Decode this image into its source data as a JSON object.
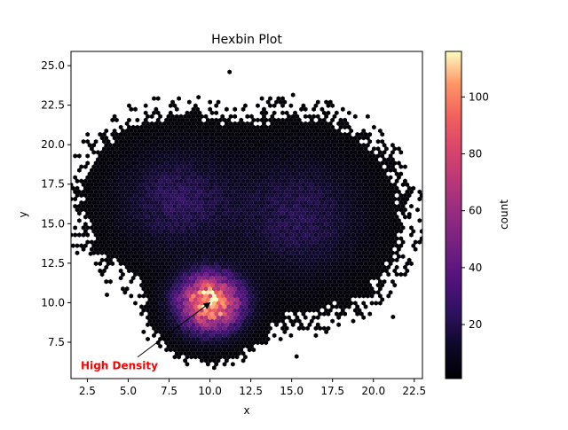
{
  "chart_data": {
    "type": "heatmap",
    "subtype": "hexbin",
    "title": "Hexbin Plot",
    "xlabel": "x",
    "ylabel": "y",
    "xlim": [
      1.5,
      23.0
    ],
    "ylim": [
      5.2,
      25.9
    ],
    "xticks": [
      2.5,
      5.0,
      7.5,
      10.0,
      12.5,
      15.0,
      17.5,
      20.0,
      22.5
    ],
    "xtick_labels": [
      "2.5",
      "5.0",
      "7.5",
      "10.0",
      "12.5",
      "15.0",
      "17.5",
      "20.0",
      "22.5"
    ],
    "yticks": [
      7.5,
      10.0,
      12.5,
      15.0,
      17.5,
      20.0,
      22.5,
      25.0
    ],
    "ytick_labels": [
      "7.5",
      "10.0",
      "12.5",
      "15.0",
      "17.5",
      "20.0",
      "22.5",
      "25.0"
    ],
    "colormap": "magma",
    "grid": false,
    "colorbar": {
      "label": "count",
      "range": [
        1,
        116
      ],
      "ticks": [
        20,
        40,
        60,
        80,
        100
      ],
      "tick_labels": [
        "20",
        "40",
        "60",
        "80",
        "100"
      ]
    },
    "density_clusters": [
      {
        "center": [
          10.0,
          10.0
        ],
        "spread": [
          1.3,
          1.2
        ],
        "peak_count": 116
      },
      {
        "center": [
          8.0,
          16.5
        ],
        "spread": [
          2.4,
          2.2
        ],
        "peak_count": 22
      },
      {
        "center": [
          15.5,
          15.5
        ],
        "spread": [
          2.6,
          2.6
        ],
        "peak_count": 20
      }
    ],
    "outliers": [
      [
        11.2,
        24.6
      ],
      [
        9.3,
        23.0
      ],
      [
        21.2,
        9.1
      ],
      [
        22.2,
        15.6
      ],
      [
        15.3,
        6.6
      ],
      [
        2.7,
        13.1
      ],
      [
        3.7,
        10.5
      ],
      [
        2.5,
        17.2
      ]
    ],
    "annotation": {
      "text": "High Density",
      "xy": [
        10.0,
        10.0
      ],
      "text_xy": [
        2.1,
        6.0
      ],
      "color": "#ff0000"
    }
  }
}
